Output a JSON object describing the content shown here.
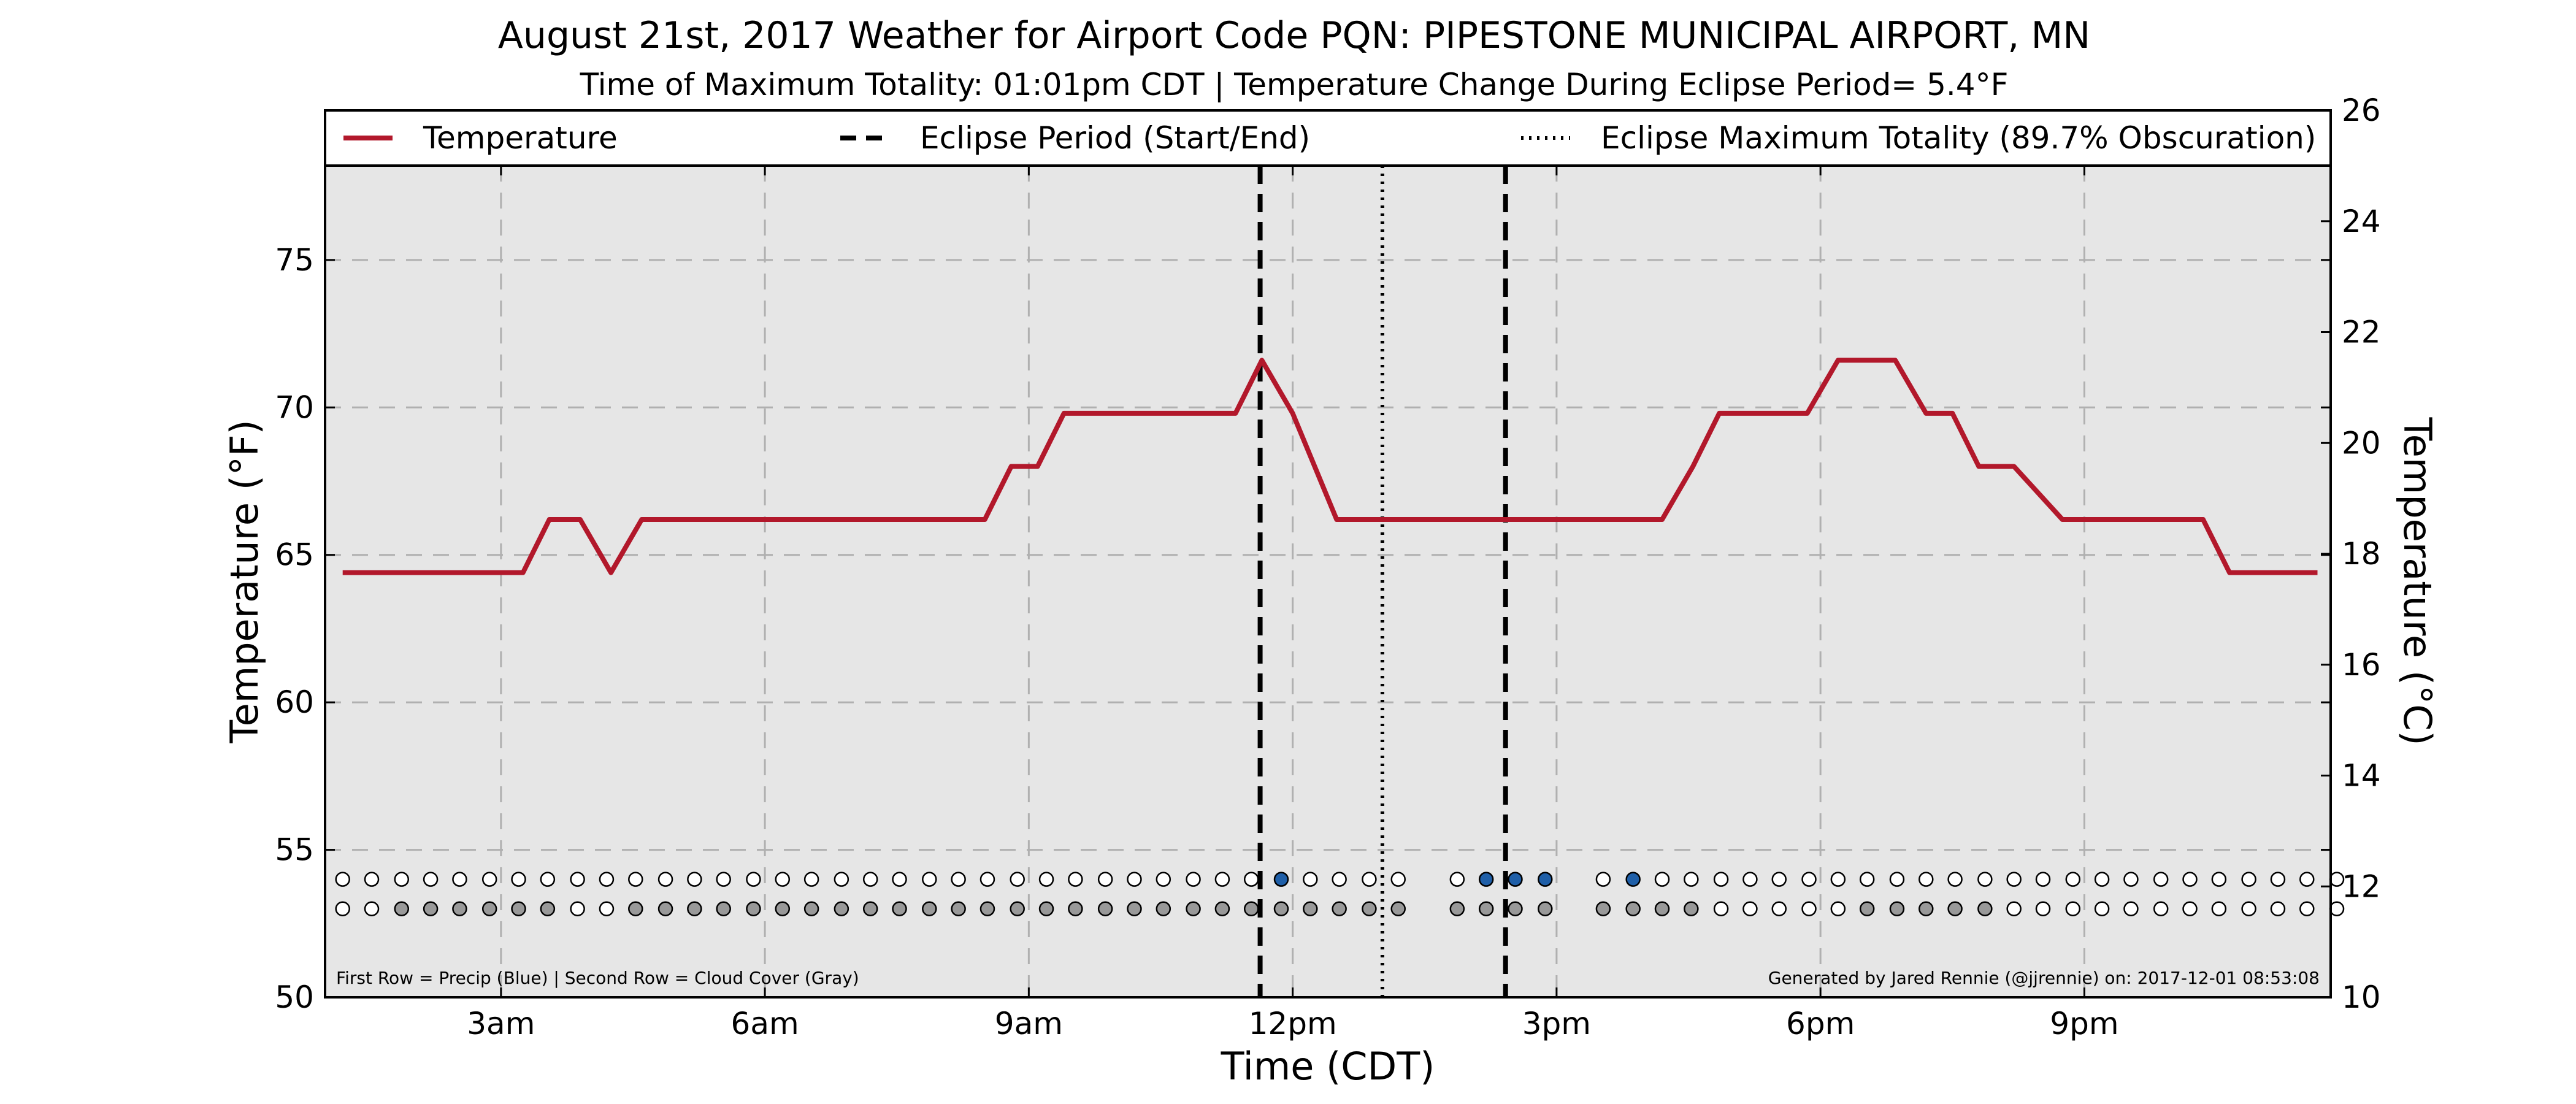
{
  "chart_data": {
    "type": "line",
    "title": "August 21st, 2017 Weather for Airport Code PQN: PIPESTONE MUNICIPAL AIRPORT, MN",
    "subtitle": "Time of Maximum Totality: 01:01pm CDT | Temperature Change During Eclipse Period= 5.4°F",
    "xlabel": "Time (CDT)",
    "ylabel": "Temperature (°F)",
    "ylabel_right": "Temperature (°C)",
    "xlim": [
      1.0,
      23.8
    ],
    "ylim": [
      50,
      78.2
    ],
    "ylim_right": [
      10,
      26
    ],
    "x_ticks": [
      {
        "value": 3,
        "label": "3am"
      },
      {
        "value": 6,
        "label": "6am"
      },
      {
        "value": 9,
        "label": "9am"
      },
      {
        "value": 12,
        "label": "12pm"
      },
      {
        "value": 15,
        "label": "3pm"
      },
      {
        "value": 18,
        "label": "6pm"
      },
      {
        "value": 21,
        "label": "9pm"
      }
    ],
    "y_ticks": [
      {
        "value": 50,
        "label": "50"
      },
      {
        "value": 55,
        "label": "55"
      },
      {
        "value": 60,
        "label": "60"
      },
      {
        "value": 65,
        "label": "65"
      },
      {
        "value": 70,
        "label": "70"
      },
      {
        "value": 75,
        "label": "75"
      }
    ],
    "y_ticks_right": [
      {
        "value": 10,
        "label": "10"
      },
      {
        "value": 12,
        "label": "12"
      },
      {
        "value": 14,
        "label": "14"
      },
      {
        "value": 16,
        "label": "16"
      },
      {
        "value": 18,
        "label": "18"
      },
      {
        "value": 20,
        "label": "20"
      },
      {
        "value": 22,
        "label": "22"
      },
      {
        "value": 24,
        "label": "24"
      },
      {
        "value": 26,
        "label": "26"
      }
    ],
    "grid": true,
    "legend_position": "top",
    "legend": [
      {
        "label": "Temperature",
        "style": "solid",
        "color": "#b2182b"
      },
      {
        "label": "Eclipse Period (Start/End)",
        "style": "dashed",
        "color": "#000000"
      },
      {
        "label": "Eclipse Maximum Totality (89.7% Obscuration)",
        "style": "dotted",
        "color": "#000000"
      }
    ],
    "series": [
      {
        "name": "Temperature",
        "color": "#b2182b",
        "x": [
          1.2,
          3.25,
          3.55,
          3.9,
          4.25,
          4.6,
          7.0,
          8.5,
          8.8,
          9.1,
          9.4,
          11.35,
          11.65,
          12.0,
          12.25,
          12.5,
          16.2,
          16.55,
          16.85,
          17.85,
          18.2,
          18.85,
          19.2,
          19.5,
          19.8,
          20.2,
          20.75,
          21.05,
          22.35,
          22.65,
          23.65
        ],
        "y": [
          64.4,
          64.4,
          66.2,
          66.2,
          64.4,
          66.2,
          66.2,
          66.2,
          68.0,
          68.0,
          69.8,
          69.8,
          71.6,
          69.8,
          68.0,
          66.2,
          66.2,
          68.0,
          69.8,
          69.8,
          71.6,
          71.6,
          69.8,
          69.8,
          68.0,
          68.0,
          66.2,
          66.2,
          66.2,
          64.4,
          64.4
        ]
      }
    ],
    "eclipse_start": 11.63,
    "eclipse_end": 14.42,
    "eclipse_max": 13.02,
    "precip_row_y": 54,
    "cloud_row_y": 53,
    "observation_times": [
      1.2,
      1.53,
      1.87,
      2.2,
      2.53,
      2.87,
      3.2,
      3.53,
      3.87,
      4.2,
      4.53,
      4.87,
      5.2,
      5.53,
      5.87,
      6.2,
      6.53,
      6.87,
      7.2,
      7.53,
      7.87,
      8.2,
      8.53,
      8.87,
      9.2,
      9.53,
      9.87,
      10.2,
      10.53,
      10.87,
      11.2,
      11.53,
      11.87,
      12.2,
      12.53,
      12.87,
      13.2,
      13.87,
      14.2,
      14.53,
      14.87,
      15.53,
      15.87,
      16.2,
      16.53,
      16.87,
      17.2,
      17.53,
      17.87,
      18.2,
      18.53,
      18.87,
      19.2,
      19.53,
      19.87,
      20.2,
      20.53,
      20.87,
      21.2,
      21.53,
      21.87,
      22.2,
      22.53,
      22.87,
      23.2,
      23.53,
      23.87
    ],
    "precip": [
      0,
      0,
      0,
      0,
      0,
      0,
      0,
      0,
      0,
      0,
      0,
      0,
      0,
      0,
      0,
      0,
      0,
      0,
      0,
      0,
      0,
      0,
      0,
      0,
      0,
      0,
      0,
      0,
      0,
      0,
      0,
      0,
      1,
      0,
      0,
      0,
      0,
      0,
      1,
      1,
      1,
      0,
      1,
      0,
      0,
      0,
      0,
      0,
      0,
      0,
      0,
      0,
      0,
      0,
      0,
      0,
      0,
      0,
      0,
      0,
      0,
      0,
      0,
      0,
      0,
      0,
      0
    ],
    "cloud": [
      0,
      0,
      1,
      1,
      1,
      1,
      1,
      1,
      0,
      0,
      1,
      1,
      1,
      1,
      1,
      1,
      1,
      1,
      1,
      1,
      1,
      1,
      1,
      1,
      1,
      1,
      1,
      1,
      1,
      1,
      1,
      1,
      1,
      1,
      1,
      1,
      1,
      1,
      1,
      1,
      1,
      1,
      1,
      1,
      1,
      0,
      0,
      0,
      0,
      0,
      1,
      1,
      1,
      1,
      1,
      0,
      0,
      0,
      0,
      0,
      0,
      0,
      0,
      0,
      0,
      0,
      0
    ],
    "colors": {
      "precip": "#1f5fa8",
      "cloud": "#999999",
      "empty": "#ffffff",
      "plot_bg": "#e6e6e6",
      "grid": "#b0b0b0"
    },
    "footnote_left": "First Row = Precip (Blue) | Second Row = Cloud Cover (Gray)",
    "footnote_right": "Generated by Jared Rennie (@jjrennie) on: 2017-12-01 08:53:08"
  }
}
